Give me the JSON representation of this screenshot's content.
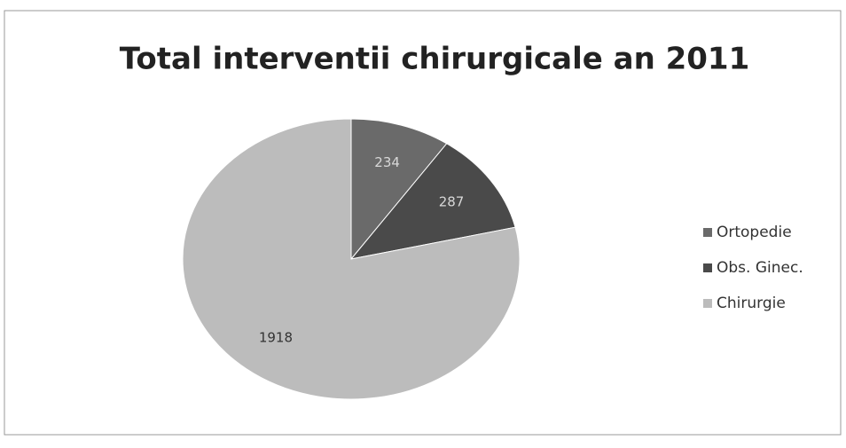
{
  "chart_data": {
    "type": "pie",
    "title": "Total interventii chirurgicale an 2011",
    "categories": [
      "Ortopedie",
      "Obs. Ginec.",
      "Chirurgie"
    ],
    "values": [
      234,
      287,
      1918
    ],
    "colors": [
      "#6a6a6a",
      "#4a4a4a",
      "#bcbcbc"
    ],
    "legend": "right"
  }
}
